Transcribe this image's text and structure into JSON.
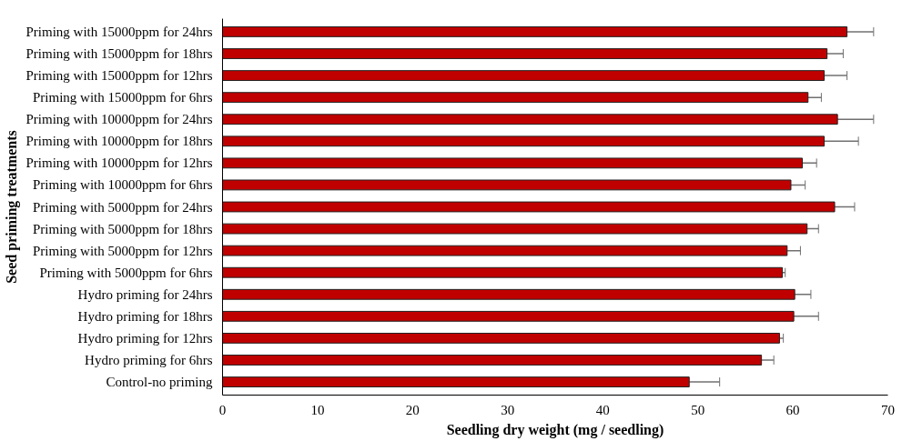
{
  "chart_data": {
    "type": "bar",
    "orientation": "horizontal",
    "xlabel": "Seedling dry weight (mg / seedling)",
    "ylabel": "Seed priming treatments",
    "categories": [
      "Priming with 15000ppm for 24hrs",
      "Priming with 15000ppm for 18hrs",
      "Priming with 15000ppm for 12hrs",
      "Priming with 15000ppm for 6hrs",
      "Priming with 10000ppm for 24hrs",
      "Priming with 10000ppm for 18hrs",
      "Priming with 10000ppm for 12hrs",
      "Priming with 10000ppm for 6hrs",
      "Priming with 5000ppm for 24hrs",
      "Priming with 5000ppm for 18hrs",
      "Priming with 5000ppm for 12hrs",
      "Priming with 5000ppm for 6hrs",
      "Hydro priming for 24hrs",
      "Hydro priming for 18hrs",
      "Hydro priming for 12hrs",
      "Hydro priming for 6hrs",
      "Control-no priming"
    ],
    "series": [
      {
        "color": "#c00000",
        "values": [
          65.7,
          63.6,
          63.3,
          61.6,
          64.7,
          63.3,
          61.0,
          59.8,
          64.4,
          61.5,
          59.4,
          58.9,
          60.2,
          60.1,
          58.6,
          56.7,
          49.1
        ],
        "errors": [
          2.8,
          1.7,
          2.4,
          1.4,
          3.8,
          3.6,
          1.5,
          1.5,
          2.1,
          1.2,
          1.4,
          0.3,
          1.7,
          2.6,
          0.4,
          1.3,
          3.2
        ]
      }
    ],
    "xlim": [
      0,
      70
    ],
    "xticks": [
      0,
      10,
      20,
      30,
      40,
      50,
      60,
      70
    ],
    "grid": false
  }
}
